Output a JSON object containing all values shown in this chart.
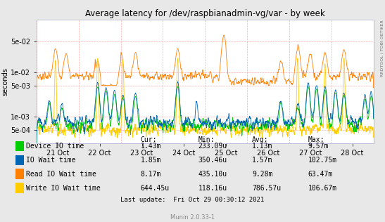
{
  "title": "Average latency for /dev/raspbianadmin-vg/var - by week",
  "ylabel": "seconds",
  "right_label": "RRDTOOL / TOBI OETIKER",
  "footer": "Munin 2.0.33-1",
  "last_update": "Last update:  Fri Oct 29 00:30:12 2021",
  "x_tick_labels": [
    "21 Oct",
    "22 Oct",
    "23 Oct",
    "24 Oct",
    "25 Oct",
    "26 Oct",
    "27 Oct",
    "28 Oct"
  ],
  "yticks": [
    0.0005,
    0.001,
    0.005,
    0.01,
    0.05
  ],
  "ytick_labels": [
    "5e-04",
    "1e-03",
    "5e-03",
    "1e-02",
    "5e-02"
  ],
  "bg_color": "#e8e8e8",
  "plot_bg_color": "#ffffff",
  "grid_color": "#ffaaaa",
  "legend": [
    {
      "label": "Device IO time",
      "color": "#00cc00"
    },
    {
      "label": "IO Wait time",
      "color": "#0066b3"
    },
    {
      "label": "Read IO Wait time",
      "color": "#ff8000"
    },
    {
      "label": "Write IO Wait time",
      "color": "#ffcc00"
    }
  ],
  "table_headers": [
    "Cur:",
    "Min:",
    "Avg:",
    "Max:"
  ],
  "table_rows": [
    [
      "1.43m",
      "233.09u",
      "1.13m",
      "9.57m"
    ],
    [
      "1.85m",
      "350.46u",
      "1.57m",
      "102.75m"
    ],
    [
      "8.17m",
      "435.10u",
      "9.28m",
      "63.47m"
    ],
    [
      "644.45u",
      "118.16u",
      "786.57u",
      "106.67m"
    ]
  ],
  "colors": {
    "device_io": "#00cc00",
    "io_wait": "#0066b3",
    "read_io_wait": "#ff8000",
    "write_io_wait": "#ffcc00"
  }
}
